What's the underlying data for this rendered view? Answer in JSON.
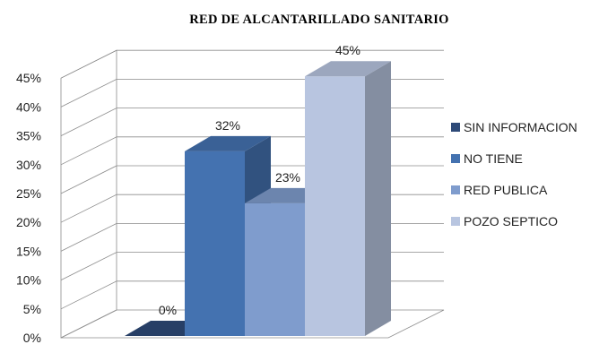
{
  "chart_data": {
    "type": "bar",
    "title": "RED DE ALCANTARILLADO SANITARIO",
    "categories": [
      "SIN INFORMACION",
      "NO TIENE",
      "RED PUBLICA",
      "POZO SEPTICO"
    ],
    "values": [
      0,
      32,
      23,
      45
    ],
    "data_labels": [
      "0%",
      "32%",
      "23%",
      "45%"
    ],
    "yticks": [
      "0%",
      "5%",
      "10%",
      "15%",
      "20%",
      "25%",
      "30%",
      "35%",
      "40%",
      "45%"
    ],
    "ylim": [
      0,
      45
    ],
    "legend": [
      "SIN INFORMACION",
      "NO TIENE",
      "RED PUBLICA",
      "POZO SEPTICO"
    ],
    "legend_position": "right",
    "grid": true,
    "style": "3d-clustered-column",
    "colors": [
      "#2e4a78",
      "#4472b0",
      "#7f9ccd",
      "#b8c5e0"
    ]
  }
}
